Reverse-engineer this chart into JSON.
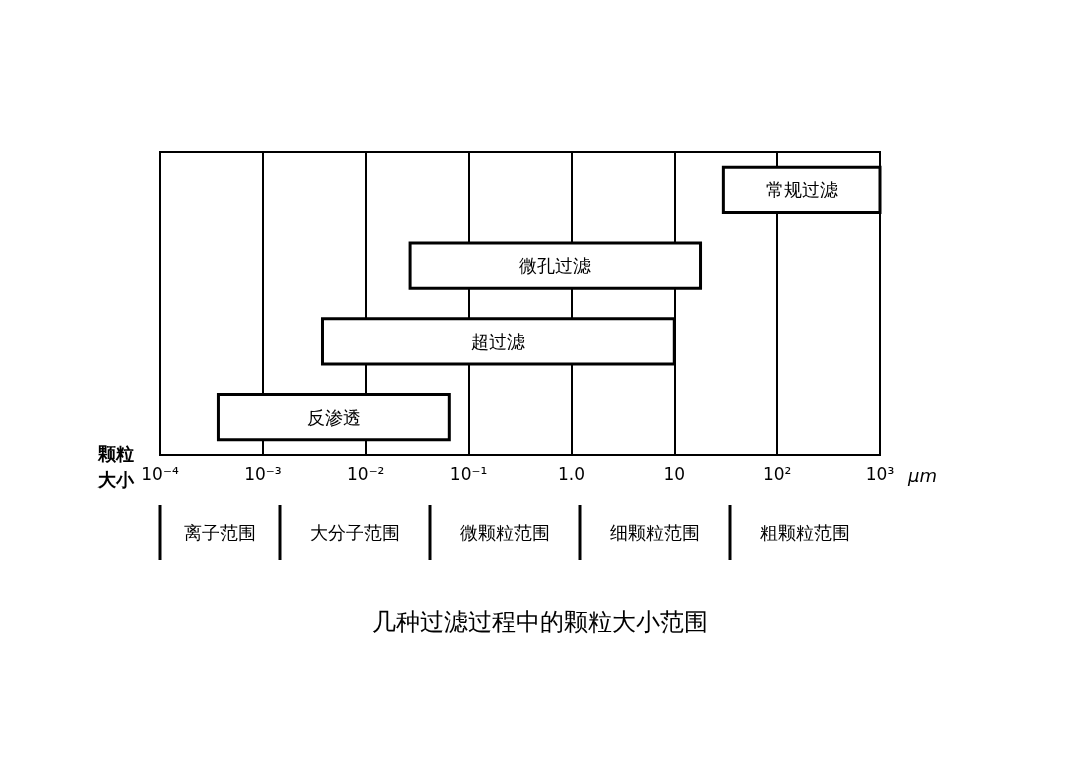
{
  "chart_data": {
    "type": "bar",
    "orientation": "horizontal",
    "title": "几种过滤过程中的颗粒大小范围",
    "xlabel": "颗粒大小",
    "categories": [
      "常规过滤",
      "微孔过滤",
      "超过滤",
      "反渗透"
    ],
    "base": [
      30,
      0.027,
      0.0038,
      0.00037
    ],
    "values": [
      970,
      17.97,
      9.996,
      0.0646
    ],
    "color": "#ffffff",
    "log": "x",
    "xlim": [
      0.0001,
      1000
    ],
    "xticks": [
      {
        "value": 0.0001,
        "label": "10⁻⁴"
      },
      {
        "value": 0.001,
        "label": "10⁻³"
      },
      {
        "value": 0.01,
        "label": "10⁻²"
      },
      {
        "value": 0.1,
        "label": "10⁻¹"
      },
      {
        "value": 1,
        "label": "1.0"
      },
      10,
      {
        "value": 100,
        "label": "10²"
      },
      {
        "value": 1000,
        "label": "10³"
      }
    ],
    "grid": "x",
    "annotations": [
      "μm",
      "离子范围",
      "大分子范围",
      "微颗粒范围",
      "细颗粒范围",
      "粗颗粒范围"
    ]
  }
}
